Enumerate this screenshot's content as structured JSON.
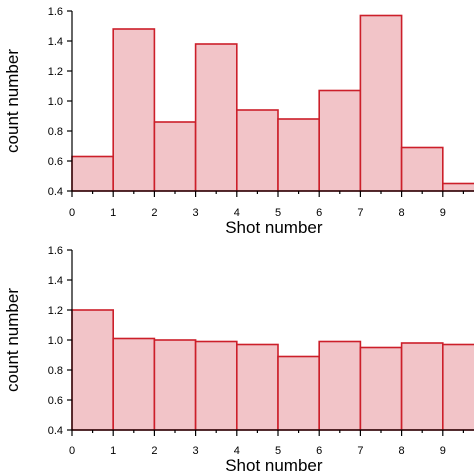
{
  "chart_data": [
    {
      "type": "bar",
      "xlabel": "Shot number",
      "ylabel": "count number",
      "xlim": [
        0,
        9.8
      ],
      "ylim": [
        0.4,
        1.6
      ],
      "xticks": [
        "0",
        "1",
        "2",
        "3",
        "4",
        "5",
        "6",
        "7",
        "8",
        "9"
      ],
      "yticks": [
        "0.4",
        "0.6",
        "0.8",
        "1.0",
        "1.2",
        "1.4",
        "1.6"
      ],
      "bin_edges": [
        0,
        1,
        2,
        3,
        4,
        5,
        6,
        7,
        8,
        9,
        9.8
      ],
      "values": [
        0.63,
        1.48,
        0.86,
        1.38,
        0.94,
        0.88,
        1.07,
        1.57,
        0.69,
        0.45
      ],
      "bar_fill": "#f2c4c8",
      "bar_stroke": "#cc1f2a"
    },
    {
      "type": "bar",
      "xlabel": "Shot number",
      "ylabel": "count number",
      "xlim": [
        0,
        9.8
      ],
      "ylim": [
        0.4,
        1.6
      ],
      "xticks": [
        "0",
        "1",
        "2",
        "3",
        "4",
        "5",
        "6",
        "7",
        "8",
        "9"
      ],
      "yticks": [
        "0.4",
        "0.6",
        "0.8",
        "1.0",
        "1.2",
        "1.4",
        "1.6"
      ],
      "bin_edges": [
        0,
        1,
        2,
        3,
        4,
        5,
        6,
        7,
        8,
        9,
        9.8
      ],
      "values": [
        1.2,
        1.01,
        1.0,
        0.99,
        0.97,
        0.89,
        0.99,
        0.95,
        0.98,
        0.97
      ],
      "bar_fill": "#f2c4c8",
      "bar_stroke": "#cc1f2a"
    }
  ]
}
